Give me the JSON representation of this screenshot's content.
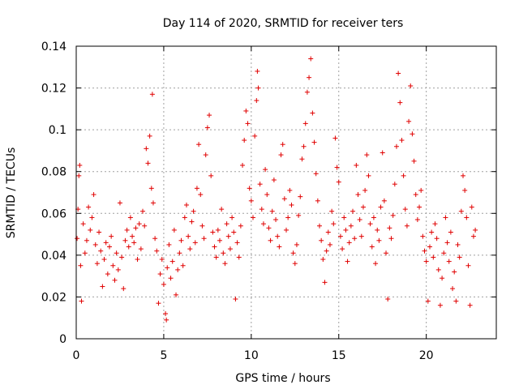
{
  "chart_data": {
    "type": "scatter",
    "title": "Day 114 of 2020, SRMTID for receiver ters",
    "xlabel": "GPS time / hours",
    "ylabel": "SRMTID / TECUs",
    "xlim": [
      0,
      24
    ],
    "ylim": [
      0,
      0.14
    ],
    "x_ticks": [
      0,
      5,
      10,
      15,
      20
    ],
    "x_tick_labels": [
      "0",
      "5",
      "10",
      "15",
      "20"
    ],
    "y_ticks": [
      0,
      0.02,
      0.04,
      0.06,
      0.08,
      0.1,
      0.12,
      0.14
    ],
    "y_tick_labels": [
      "0",
      "0.02",
      "0.04",
      "0.06",
      "0.08",
      "0.1",
      "0.12",
      "0.14"
    ],
    "grid": true,
    "marker": "+",
    "color": "#e00000",
    "series": [
      {
        "name": "SRMTID",
        "points": [
          [
            0.05,
            0.048
          ],
          [
            0.1,
            0.062
          ],
          [
            0.15,
            0.078
          ],
          [
            0.2,
            0.083
          ],
          [
            0.25,
            0.035
          ],
          [
            0.3,
            0.018
          ],
          [
            0.4,
            0.055
          ],
          [
            0.5,
            0.041
          ],
          [
            0.6,
            0.047
          ],
          [
            0.7,
            0.063
          ],
          [
            0.8,
            0.052
          ],
          [
            0.9,
            0.058
          ],
          [
            1.0,
            0.069
          ],
          [
            1.1,
            0.045
          ],
          [
            1.2,
            0.036
          ],
          [
            1.3,
            0.051
          ],
          [
            1.4,
            0.042
          ],
          [
            1.5,
            0.025
          ],
          [
            1.6,
            0.038
          ],
          [
            1.7,
            0.046
          ],
          [
            1.8,
            0.031
          ],
          [
            1.9,
            0.044
          ],
          [
            2.0,
            0.049
          ],
          [
            2.1,
            0.035
          ],
          [
            2.2,
            0.028
          ],
          [
            2.3,
            0.041
          ],
          [
            2.4,
            0.033
          ],
          [
            2.5,
            0.065
          ],
          [
            2.6,
            0.039
          ],
          [
            2.7,
            0.024
          ],
          [
            2.8,
            0.047
          ],
          [
            2.9,
            0.052
          ],
          [
            3.0,
            0.044
          ],
          [
            3.1,
            0.058
          ],
          [
            3.2,
            0.049
          ],
          [
            3.3,
            0.046
          ],
          [
            3.4,
            0.053
          ],
          [
            3.5,
            0.038
          ],
          [
            3.6,
            0.055
          ],
          [
            3.7,
            0.043
          ],
          [
            3.8,
            0.061
          ],
          [
            3.9,
            0.054
          ],
          [
            4.0,
            0.091
          ],
          [
            4.1,
            0.084
          ],
          [
            4.2,
            0.097
          ],
          [
            4.3,
            0.072
          ],
          [
            4.35,
            0.117
          ],
          [
            4.4,
            0.065
          ],
          [
            4.5,
            0.048
          ],
          [
            4.6,
            0.042
          ],
          [
            4.7,
            0.017
          ],
          [
            4.8,
            0.031
          ],
          [
            4.9,
            0.038
          ],
          [
            5.0,
            0.026
          ],
          [
            5.1,
            0.012
          ],
          [
            5.15,
            0.009
          ],
          [
            5.2,
            0.034
          ],
          [
            5.3,
            0.045
          ],
          [
            5.4,
            0.029
          ],
          [
            5.5,
            0.037
          ],
          [
            5.6,
            0.052
          ],
          [
            5.7,
            0.021
          ],
          [
            5.8,
            0.033
          ],
          [
            5.9,
            0.041
          ],
          [
            6.0,
            0.047
          ],
          [
            6.1,
            0.035
          ],
          [
            6.2,
            0.058
          ],
          [
            6.3,
            0.064
          ],
          [
            6.4,
            0.049
          ],
          [
            6.5,
            0.043
          ],
          [
            6.6,
            0.056
          ],
          [
            6.7,
            0.061
          ],
          [
            6.8,
            0.046
          ],
          [
            6.9,
            0.072
          ],
          [
            7.0,
            0.093
          ],
          [
            7.1,
            0.069
          ],
          [
            7.2,
            0.054
          ],
          [
            7.3,
            0.048
          ],
          [
            7.4,
            0.088
          ],
          [
            7.5,
            0.101
          ],
          [
            7.6,
            0.107
          ],
          [
            7.7,
            0.078
          ],
          [
            7.8,
            0.051
          ],
          [
            7.9,
            0.044
          ],
          [
            8.0,
            0.039
          ],
          [
            8.1,
            0.052
          ],
          [
            8.2,
            0.047
          ],
          [
            8.3,
            0.062
          ],
          [
            8.4,
            0.041
          ],
          [
            8.5,
            0.036
          ],
          [
            8.6,
            0.055
          ],
          [
            8.7,
            0.049
          ],
          [
            8.8,
            0.043
          ],
          [
            8.9,
            0.058
          ],
          [
            9.0,
            0.051
          ],
          [
            9.1,
            0.019
          ],
          [
            9.2,
            0.046
          ],
          [
            9.3,
            0.039
          ],
          [
            9.4,
            0.054
          ],
          [
            9.5,
            0.083
          ],
          [
            9.6,
            0.095
          ],
          [
            9.7,
            0.109
          ],
          [
            9.8,
            0.103
          ],
          [
            9.9,
            0.072
          ],
          [
            10.0,
            0.066
          ],
          [
            10.1,
            0.058
          ],
          [
            10.2,
            0.097
          ],
          [
            10.3,
            0.114
          ],
          [
            10.35,
            0.128
          ],
          [
            10.4,
            0.12
          ],
          [
            10.5,
            0.074
          ],
          [
            10.6,
            0.062
          ],
          [
            10.7,
            0.055
          ],
          [
            10.8,
            0.081
          ],
          [
            10.9,
            0.069
          ],
          [
            11.0,
            0.053
          ],
          [
            11.1,
            0.047
          ],
          [
            11.2,
            0.061
          ],
          [
            11.3,
            0.076
          ],
          [
            11.4,
            0.057
          ],
          [
            11.5,
            0.049
          ],
          [
            11.6,
            0.044
          ],
          [
            11.7,
            0.088
          ],
          [
            11.8,
            0.093
          ],
          [
            11.9,
            0.067
          ],
          [
            12.0,
            0.052
          ],
          [
            12.1,
            0.058
          ],
          [
            12.2,
            0.071
          ],
          [
            12.3,
            0.064
          ],
          [
            12.4,
            0.041
          ],
          [
            12.5,
            0.036
          ],
          [
            12.6,
            0.045
          ],
          [
            12.7,
            0.059
          ],
          [
            12.8,
            0.068
          ],
          [
            12.9,
            0.086
          ],
          [
            13.0,
            0.092
          ],
          [
            13.1,
            0.103
          ],
          [
            13.2,
            0.118
          ],
          [
            13.3,
            0.125
          ],
          [
            13.4,
            0.134
          ],
          [
            13.5,
            0.108
          ],
          [
            13.6,
            0.094
          ],
          [
            13.7,
            0.079
          ],
          [
            13.8,
            0.066
          ],
          [
            13.9,
            0.054
          ],
          [
            14.0,
            0.047
          ],
          [
            14.1,
            0.038
          ],
          [
            14.2,
            0.027
          ],
          [
            14.3,
            0.042
          ],
          [
            14.4,
            0.051
          ],
          [
            14.5,
            0.045
          ],
          [
            14.6,
            0.061
          ],
          [
            14.7,
            0.055
          ],
          [
            14.8,
            0.096
          ],
          [
            14.9,
            0.082
          ],
          [
            15.0,
            0.075
          ],
          [
            15.1,
            0.049
          ],
          [
            15.2,
            0.043
          ],
          [
            15.3,
            0.058
          ],
          [
            15.4,
            0.052
          ],
          [
            15.5,
            0.037
          ],
          [
            15.6,
            0.046
          ],
          [
            15.7,
            0.054
          ],
          [
            15.8,
            0.061
          ],
          [
            15.9,
            0.048
          ],
          [
            16.0,
            0.083
          ],
          [
            16.1,
            0.069
          ],
          [
            16.2,
            0.057
          ],
          [
            16.3,
            0.049
          ],
          [
            16.4,
            0.063
          ],
          [
            16.5,
            0.071
          ],
          [
            16.6,
            0.088
          ],
          [
            16.7,
            0.078
          ],
          [
            16.8,
            0.055
          ],
          [
            16.9,
            0.044
          ],
          [
            17.0,
            0.058
          ],
          [
            17.1,
            0.036
          ],
          [
            17.2,
            0.052
          ],
          [
            17.3,
            0.047
          ],
          [
            17.4,
            0.063
          ],
          [
            17.5,
            0.089
          ],
          [
            17.6,
            0.066
          ],
          [
            17.7,
            0.041
          ],
          [
            17.8,
            0.019
          ],
          [
            17.9,
            0.053
          ],
          [
            18.0,
            0.048
          ],
          [
            18.1,
            0.059
          ],
          [
            18.2,
            0.074
          ],
          [
            18.3,
            0.092
          ],
          [
            18.4,
            0.127
          ],
          [
            18.5,
            0.113
          ],
          [
            18.6,
            0.095
          ],
          [
            18.7,
            0.078
          ],
          [
            18.8,
            0.062
          ],
          [
            18.9,
            0.054
          ],
          [
            19.0,
            0.104
          ],
          [
            19.1,
            0.121
          ],
          [
            19.2,
            0.098
          ],
          [
            19.3,
            0.085
          ],
          [
            19.4,
            0.069
          ],
          [
            19.5,
            0.057
          ],
          [
            19.6,
            0.063
          ],
          [
            19.7,
            0.071
          ],
          [
            19.8,
            0.049
          ],
          [
            19.9,
            0.042
          ],
          [
            20.0,
            0.037
          ],
          [
            20.1,
            0.018
          ],
          [
            20.2,
            0.044
          ],
          [
            20.3,
            0.051
          ],
          [
            20.4,
            0.039
          ],
          [
            20.5,
            0.055
          ],
          [
            20.6,
            0.048
          ],
          [
            20.7,
            0.033
          ],
          [
            20.8,
            0.016
          ],
          [
            20.9,
            0.029
          ],
          [
            21.0,
            0.041
          ],
          [
            21.1,
            0.058
          ],
          [
            21.2,
            0.046
          ],
          [
            21.3,
            0.037
          ],
          [
            21.4,
            0.051
          ],
          [
            21.5,
            0.024
          ],
          [
            21.6,
            0.032
          ],
          [
            21.7,
            0.018
          ],
          [
            21.8,
            0.045
          ],
          [
            21.9,
            0.039
          ],
          [
            22.0,
            0.061
          ],
          [
            22.1,
            0.078
          ],
          [
            22.2,
            0.071
          ],
          [
            22.3,
            0.058
          ],
          [
            22.4,
            0.035
          ],
          [
            22.5,
            0.016
          ],
          [
            22.6,
            0.063
          ],
          [
            22.7,
            0.049
          ],
          [
            22.8,
            0.052
          ]
        ]
      }
    ]
  }
}
